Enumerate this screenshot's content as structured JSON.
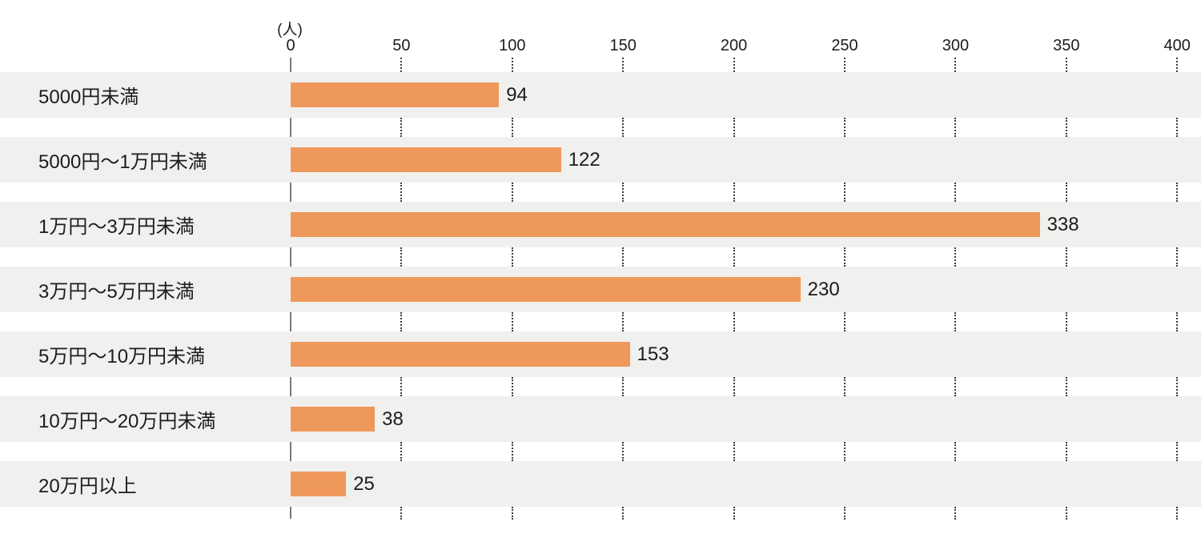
{
  "chart_data": {
    "type": "bar",
    "orientation": "horizontal",
    "unit_label": "(人)",
    "categories": [
      "5000円未満",
      "5000円〜1万円未満",
      "1万円〜3万円未満",
      "3万円〜5万円未満",
      "5万円〜10万円未満",
      "10万円〜20万円未満",
      "20万円以上"
    ],
    "values": [
      94,
      122,
      338,
      230,
      153,
      38,
      25
    ],
    "ticks": [
      0,
      50,
      100,
      150,
      200,
      250,
      300,
      350,
      400
    ],
    "xlim": [
      0,
      400
    ],
    "axis_position": "top",
    "legend": "none",
    "grid": "dotted vertical lines at ticks, visible only between row bands",
    "bar_color": "#EF985C",
    "band_color": "#F0F0EF",
    "gap_color": "#FFFFFF",
    "axis_line_color": "#7A7A7A",
    "gridline_color": "#3C3C3C",
    "text_color": "#1C1C1C"
  }
}
